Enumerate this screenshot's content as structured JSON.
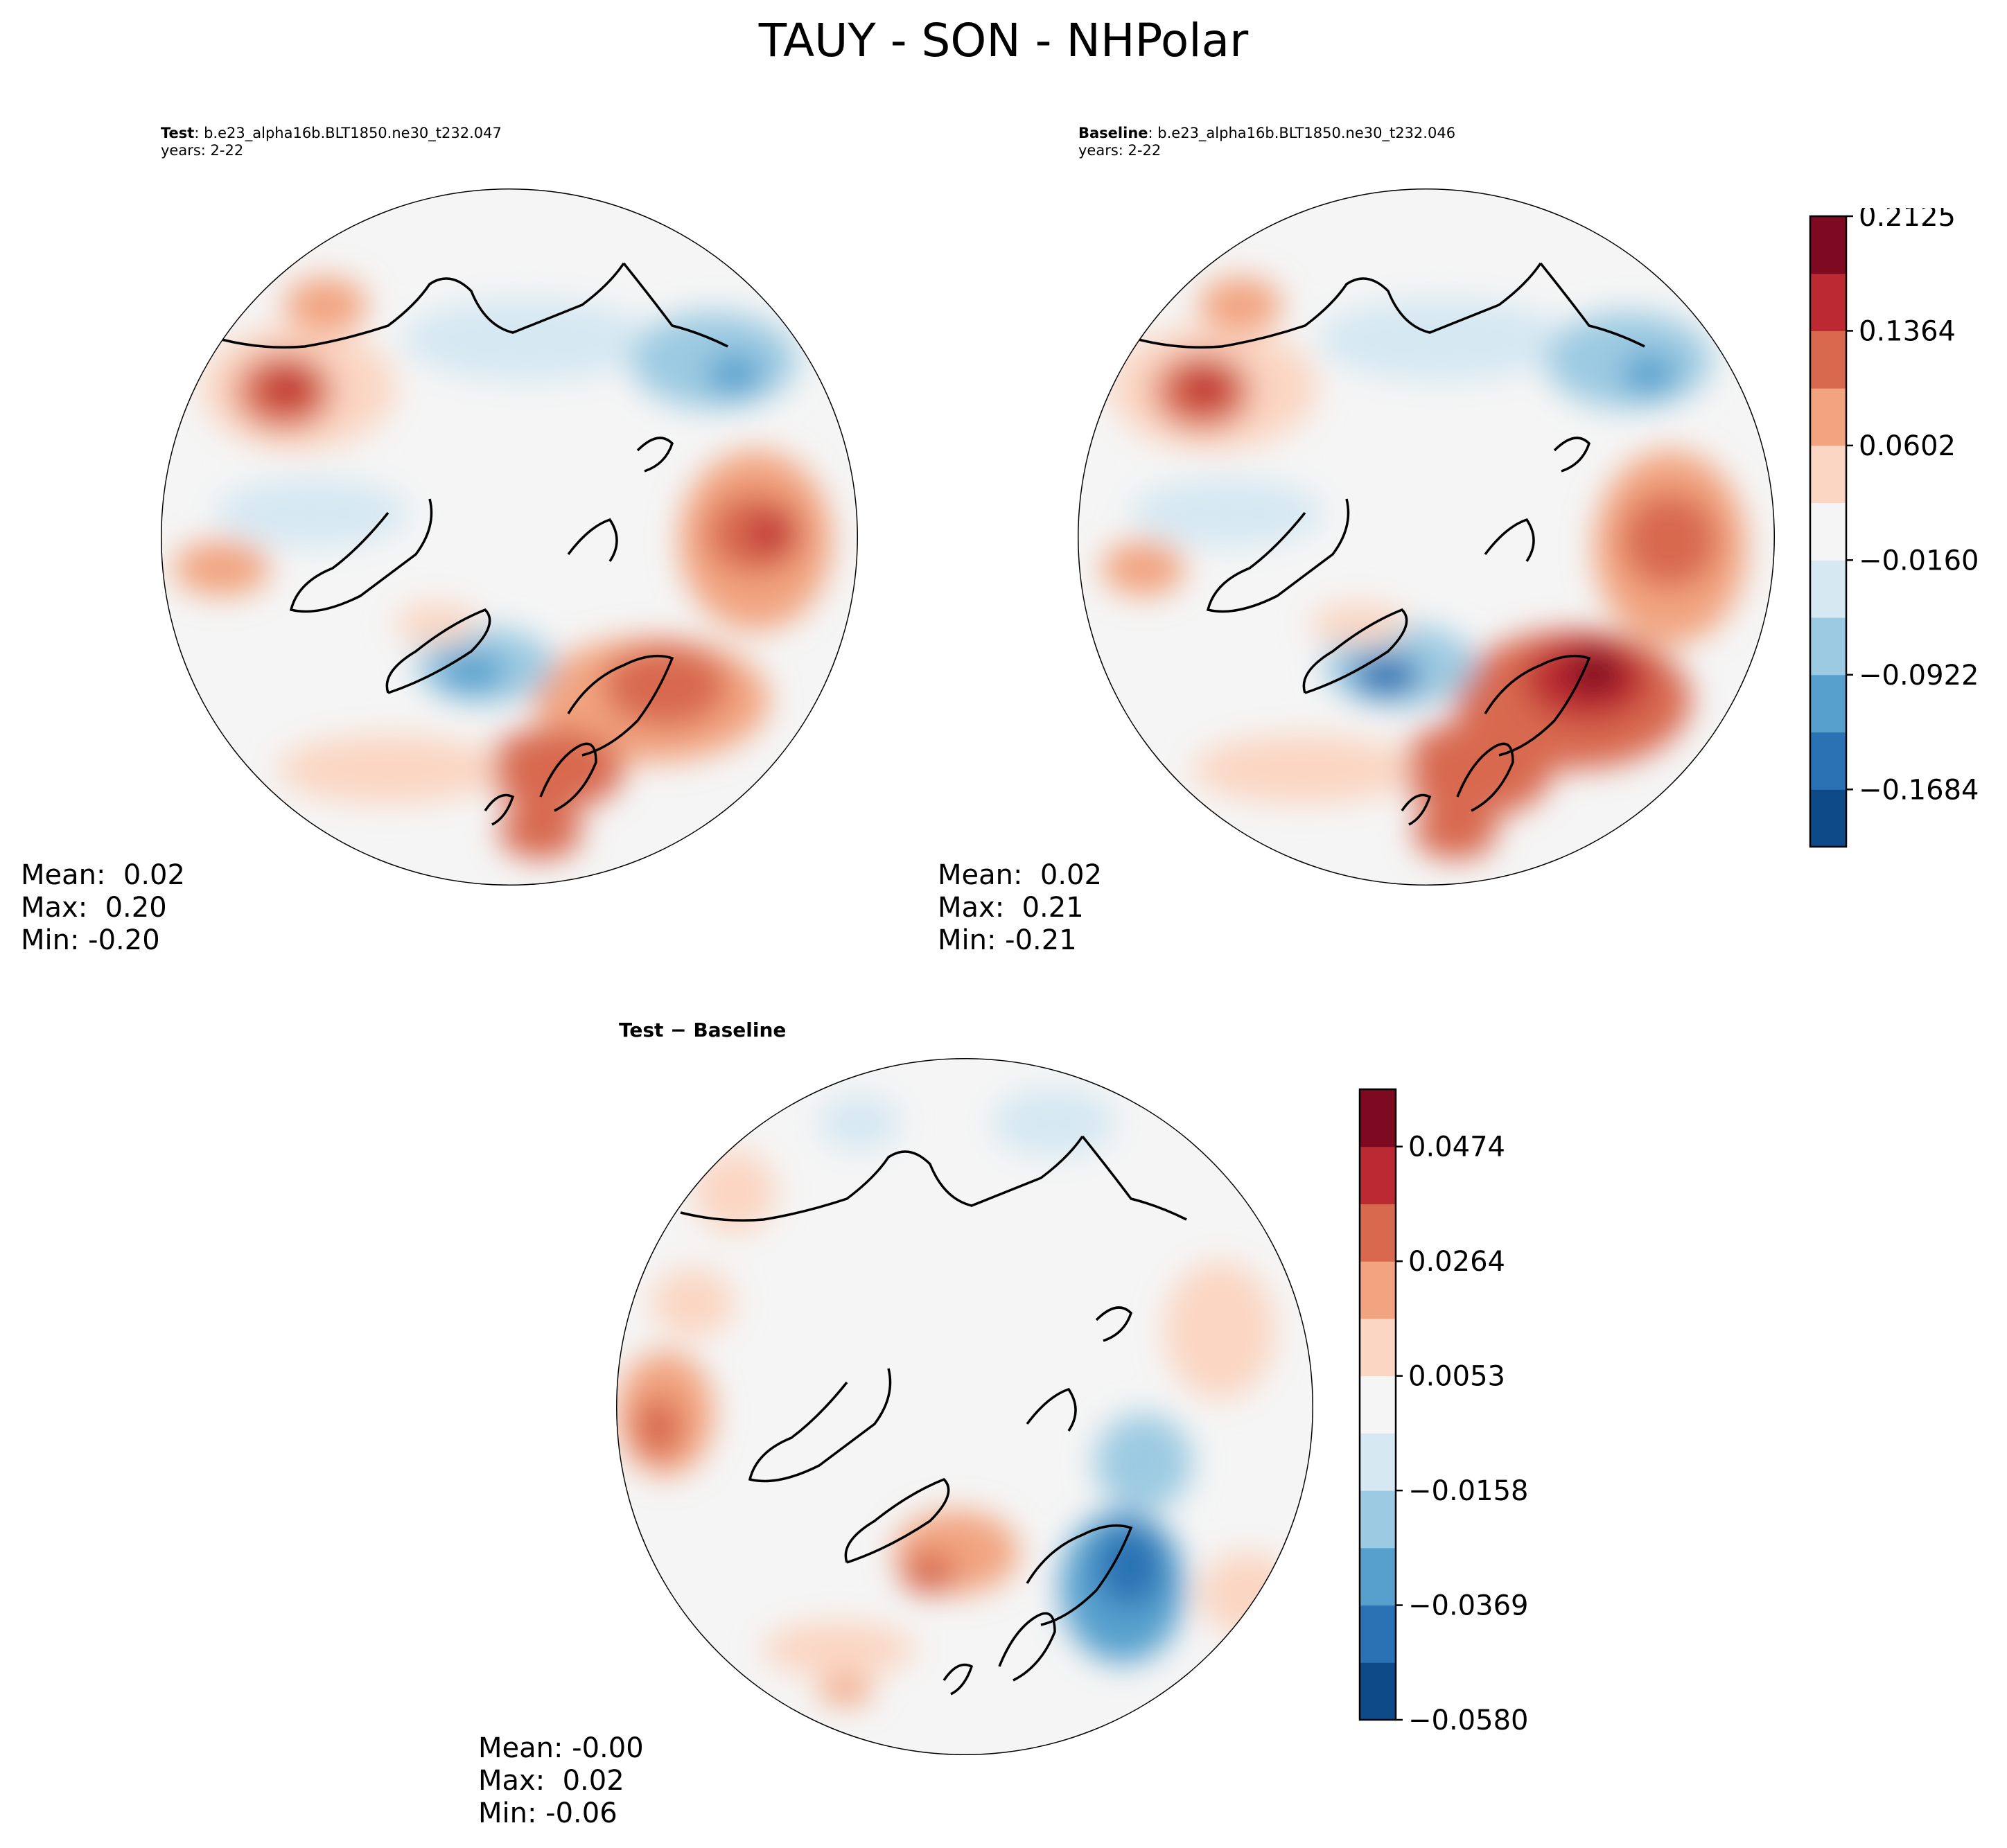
{
  "title": "TAUY - SON - NHPolar",
  "panels": {
    "test": {
      "label": "Test",
      "case": "b.e23_alpha16b.BLT1850.ne30_t232.047",
      "years": "years: 2-22",
      "stats": {
        "mean": "Mean:  0.02",
        "max": "Max:  0.20",
        "min": "Min: -0.20"
      }
    },
    "baseline": {
      "label": "Baseline",
      "case": "b.e23_alpha16b.BLT1850.ne30_t232.046",
      "years": "years: 2-22",
      "stats": {
        "mean": "Mean:  0.02",
        "max": "Max:  0.21",
        "min": "Min: -0.21"
      }
    },
    "diff": {
      "label": "Test − Baseline",
      "stats": {
        "mean": "Mean: -0.00",
        "max": "Max:  0.02",
        "min": "Min: -0.06"
      }
    }
  },
  "colorbars": {
    "main": {
      "colors": [
        "#0d4a87",
        "#2a72b4",
        "#57a0ce",
        "#9ccae2",
        "#d6e8f2",
        "#f5f5f5",
        "#fbd6c2",
        "#f2a480",
        "#d8694f",
        "#bb2a33",
        "#7d0a21"
      ],
      "tick_labels": [
        "−0.1684",
        "−0.0922",
        "−0.0160",
        "0.0602",
        "0.1364",
        "0.2125"
      ],
      "tick_positions": [
        1,
        3,
        5,
        7,
        9,
        11
      ]
    },
    "diff": {
      "colors": [
        "#0d4a87",
        "#2a72b4",
        "#57a0ce",
        "#9ccae2",
        "#d6e8f2",
        "#f5f5f5",
        "#fbd6c2",
        "#f2a480",
        "#d8694f",
        "#bb2a33",
        "#7d0a21"
      ],
      "tick_labels": [
        "−0.0580",
        "−0.0369",
        "−0.0158",
        "0.0053",
        "0.0264",
        "0.0474"
      ],
      "tick_positions": [
        0,
        2,
        4,
        6,
        8,
        10
      ]
    }
  },
  "chart_data": [
    {
      "type": "heatmap",
      "title": "Test: b.e23_alpha16b.BLT1850.ne30_t232.047",
      "projection": "North Polar Stereographic",
      "variable": "TAUY",
      "season": "SON",
      "years": "2-22",
      "levels": [
        -0.2125,
        -0.1684,
        -0.0922,
        -0.016,
        0.0602,
        0.1364,
        0.2125
      ],
      "mean": 0.02,
      "max": 0.2,
      "min": -0.2
    },
    {
      "type": "heatmap",
      "title": "Baseline: b.e23_alpha16b.BLT1850.ne30_t232.046",
      "projection": "North Polar Stereographic",
      "variable": "TAUY",
      "season": "SON",
      "years": "2-22",
      "levels": [
        -0.2125,
        -0.1684,
        -0.0922,
        -0.016,
        0.0602,
        0.1364,
        0.2125
      ],
      "mean": 0.02,
      "max": 0.21,
      "min": -0.21
    },
    {
      "type": "heatmap",
      "title": "Test − Baseline",
      "projection": "North Polar Stereographic",
      "variable": "TAUY",
      "season": "SON",
      "levels": [
        -0.058,
        -0.0369,
        -0.0158,
        0.0053,
        0.0264,
        0.0474
      ],
      "mean": -0.0,
      "max": 0.02,
      "min": -0.06
    }
  ]
}
